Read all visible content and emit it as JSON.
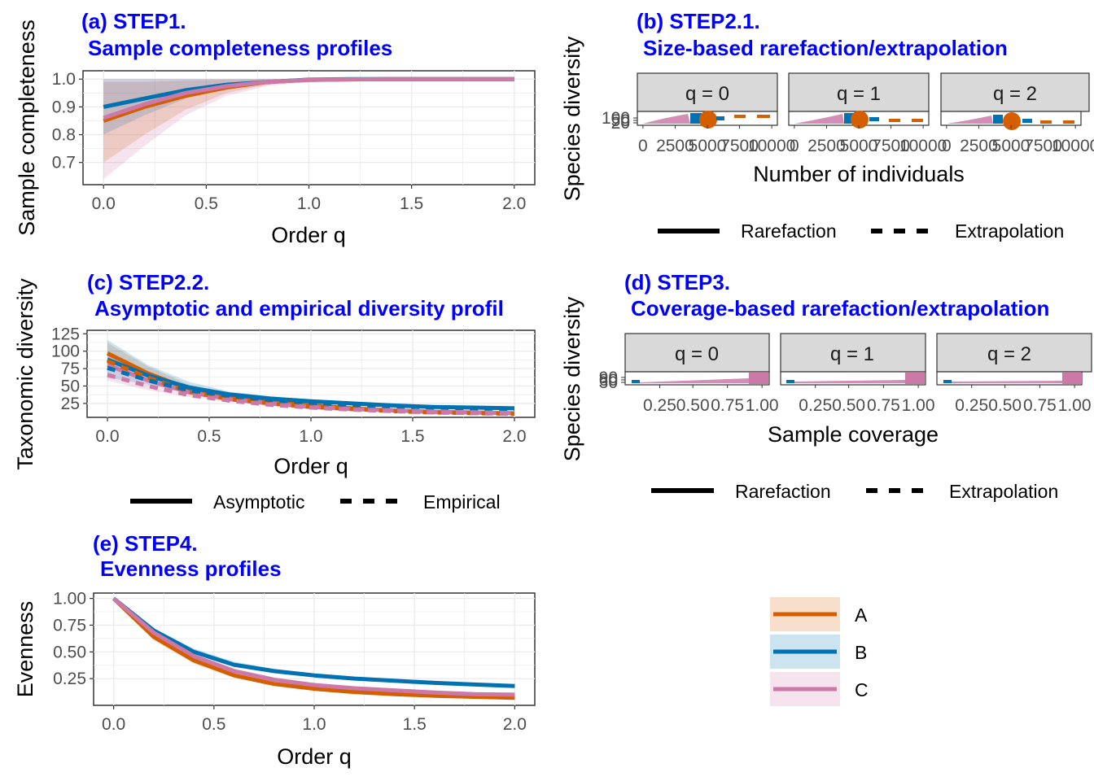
{
  "colors": {
    "accent_title": "#0000ff",
    "A": "#D55E00",
    "B": "#0072B2",
    "C": "#CC79A7",
    "grid": "#ebebeb",
    "strip": "#d9d9d9",
    "axis_text": "#4d4d4d"
  },
  "chart_data": [
    {
      "id": "a",
      "type": "line",
      "title": "(a) STEP1.",
      "subtitle": "Sample completeness profiles",
      "xlabel": "Order q",
      "ylabel": "Sample completeness",
      "xlim": [
        -0.1,
        2.1
      ],
      "ylim": [
        0.62,
        1.03
      ],
      "xticks": [
        "0.0",
        "0.5",
        "1.0",
        "1.5",
        "2.0"
      ],
      "xtick_values": [
        0,
        0.5,
        1,
        1.5,
        2
      ],
      "yticks": [
        "0.7",
        "0.8",
        "0.9",
        "1.0"
      ],
      "ytick_values": [
        0.7,
        0.8,
        0.9,
        1.0
      ],
      "x": [
        0,
        0.2,
        0.4,
        0.6,
        0.8,
        1.0,
        1.2,
        1.4,
        1.6,
        1.8,
        2.0
      ],
      "series": [
        {
          "name": "A",
          "values": [
            0.85,
            0.9,
            0.94,
            0.97,
            0.99,
            0.997,
            0.999,
            1.0,
            1.0,
            1.0,
            1.0
          ],
          "lower": [
            0.7,
            0.8,
            0.89,
            0.95,
            0.98,
            0.993,
            0.998,
            1.0,
            1.0,
            1.0,
            1.0
          ],
          "upper": [
            0.99,
            0.99,
            0.995,
            0.998,
            1.0,
            1.0,
            1.0,
            1.0,
            1.0,
            1.0,
            1.0
          ]
        },
        {
          "name": "B",
          "values": [
            0.9,
            0.93,
            0.96,
            0.98,
            0.99,
            0.998,
            1.0,
            1.0,
            1.0,
            1.0,
            1.0
          ],
          "lower": [
            0.8,
            0.87,
            0.93,
            0.965,
            0.985,
            0.995,
            0.999,
            1.0,
            1.0,
            1.0,
            1.0
          ],
          "upper": [
            1.0,
            1.0,
            1.0,
            1.0,
            1.0,
            1.0,
            1.0,
            1.0,
            1.0,
            1.0,
            1.0
          ]
        },
        {
          "name": "C",
          "values": [
            0.86,
            0.91,
            0.95,
            0.975,
            0.99,
            0.997,
            0.999,
            1.0,
            1.0,
            1.0,
            1.0
          ],
          "lower": [
            0.64,
            0.76,
            0.87,
            0.94,
            0.975,
            0.99,
            0.997,
            1.0,
            1.0,
            1.0,
            1.0
          ],
          "upper": [
            1.0,
            1.0,
            1.0,
            1.0,
            1.0,
            1.0,
            1.0,
            1.0,
            1.0,
            1.0,
            1.0
          ]
        }
      ]
    },
    {
      "id": "b",
      "type": "line",
      "title": "(b) STEP2.1.",
      "subtitle": "Size-based rarefaction/extrapolation",
      "xlabel": "Number of individuals",
      "ylabel": "Species diversity",
      "facets": [
        "q = 0",
        "q = 1",
        "q = 2"
      ],
      "xticks": [
        "0",
        "2500",
        "5000",
        "7500",
        "10000"
      ],
      "yticks": [
        "20",
        "50",
        "100"
      ],
      "legend": [
        "Rarefaction",
        "Extrapolation"
      ]
    },
    {
      "id": "c",
      "type": "line",
      "title": "(c) STEP2.2.",
      "subtitle": "Asymptotic and empirical diversity profil",
      "xlabel": "Order q",
      "ylabel": "Taxonomic diversity",
      "xlim": [
        -0.1,
        2.1
      ],
      "ylim": [
        5,
        130
      ],
      "xticks": [
        "0.0",
        "0.5",
        "1.0",
        "1.5",
        "2.0"
      ],
      "xtick_values": [
        0,
        0.5,
        1,
        1.5,
        2
      ],
      "yticks": [
        "25",
        "50",
        "75",
        "100",
        "125"
      ],
      "ytick_values": [
        25,
        50,
        75,
        100,
        125
      ],
      "x": [
        0,
        0.2,
        0.4,
        0.6,
        0.8,
        1.0,
        1.2,
        1.4,
        1.6,
        1.8,
        2.0
      ],
      "series": [
        {
          "name": "A",
          "values": [
            97,
            68,
            46,
            34,
            27,
            22,
            18,
            15,
            13,
            12,
            11
          ],
          "lower": [
            80,
            58,
            40,
            30,
            24,
            19,
            16,
            13,
            11,
            10,
            9
          ],
          "upper": [
            112,
            78,
            52,
            38,
            30,
            25,
            21,
            18,
            16,
            14,
            13
          ]
        },
        {
          "name": "B",
          "values": [
            88,
            65,
            48,
            38,
            32,
            28,
            25,
            22,
            20,
            19,
            18
          ],
          "lower": [
            62,
            52,
            41,
            34,
            29,
            25,
            22,
            20,
            18,
            17,
            16
          ],
          "upper": [
            116,
            80,
            56,
            42,
            35,
            30,
            27,
            24,
            22,
            21,
            20
          ]
        },
        {
          "name": "C",
          "values": [
            80,
            58,
            41,
            31,
            25,
            20,
            17,
            15,
            13,
            12,
            11
          ],
          "lower": [
            58,
            44,
            34,
            27,
            22,
            18,
            15,
            13,
            11,
            10,
            10
          ],
          "upper": [
            98,
            70,
            47,
            35,
            28,
            22,
            19,
            16,
            14,
            13,
            12
          ]
        }
      ],
      "empirical": [
        {
          "name": "A",
          "values": [
            86,
            62,
            42,
            31,
            25,
            20,
            17,
            14,
            12,
            11,
            10
          ]
        },
        {
          "name": "B",
          "values": [
            76,
            58,
            44,
            36,
            30,
            26,
            23,
            21,
            19,
            18,
            17
          ]
        },
        {
          "name": "C",
          "values": [
            66,
            50,
            37,
            29,
            23,
            19,
            16,
            14,
            12,
            11,
            10
          ]
        }
      ],
      "legend": [
        "Asymptotic",
        "Empirical"
      ]
    },
    {
      "id": "d",
      "type": "line",
      "title": "(d) STEP3.",
      "subtitle": "Coverage-based rarefaction/extrapolation",
      "xlabel": "Sample coverage",
      "ylabel": "Species diversity",
      "facets": [
        "q = 0",
        "q = 1",
        "q = 2"
      ],
      "xticks": [
        "0.25",
        "0.50",
        "0.75",
        "1.00"
      ],
      "yticks": [
        "30",
        "60",
        "90"
      ],
      "legend": [
        "Rarefaction",
        "Extrapolation"
      ]
    },
    {
      "id": "e",
      "type": "line",
      "title": "(e) STEP4.",
      "subtitle": "Evenness profiles",
      "xlabel": "Order q",
      "ylabel": "Evenness",
      "xlim": [
        -0.1,
        2.1
      ],
      "ylim": [
        0.0,
        1.05
      ],
      "xticks": [
        "0.0",
        "0.5",
        "1.0",
        "1.5",
        "2.0"
      ],
      "xtick_values": [
        0,
        0.5,
        1,
        1.5,
        2
      ],
      "yticks": [
        "0.25",
        "0.50",
        "0.75",
        "1.00"
      ],
      "ytick_values": [
        0.25,
        0.5,
        0.75,
        1.0
      ],
      "x": [
        0,
        0.2,
        0.4,
        0.6,
        0.8,
        1.0,
        1.2,
        1.4,
        1.6,
        1.8,
        2.0
      ],
      "series": [
        {
          "name": "A",
          "values": [
            1.0,
            0.64,
            0.42,
            0.28,
            0.2,
            0.155,
            0.125,
            0.105,
            0.09,
            0.08,
            0.07
          ],
          "lower": [
            1.0,
            0.61,
            0.39,
            0.26,
            0.185,
            0.14,
            0.11,
            0.095,
            0.08,
            0.07,
            0.06
          ],
          "upper": [
            1.0,
            0.67,
            0.45,
            0.3,
            0.215,
            0.17,
            0.14,
            0.115,
            0.1,
            0.09,
            0.08
          ]
        },
        {
          "name": "B",
          "values": [
            1.0,
            0.7,
            0.5,
            0.38,
            0.32,
            0.28,
            0.25,
            0.23,
            0.21,
            0.195,
            0.18
          ],
          "lower": [
            1.0,
            0.68,
            0.48,
            0.36,
            0.3,
            0.26,
            0.235,
            0.215,
            0.195,
            0.18,
            0.17
          ],
          "upper": [
            1.0,
            0.72,
            0.53,
            0.41,
            0.34,
            0.3,
            0.27,
            0.245,
            0.225,
            0.21,
            0.195
          ]
        },
        {
          "name": "C",
          "values": [
            1.0,
            0.68,
            0.46,
            0.32,
            0.24,
            0.19,
            0.16,
            0.14,
            0.12,
            0.105,
            0.1
          ],
          "lower": [
            1.0,
            0.65,
            0.43,
            0.3,
            0.22,
            0.17,
            0.145,
            0.125,
            0.105,
            0.095,
            0.09
          ],
          "upper": [
            1.0,
            0.71,
            0.49,
            0.35,
            0.26,
            0.21,
            0.175,
            0.155,
            0.135,
            0.12,
            0.11
          ]
        }
      ]
    }
  ],
  "group_legend": [
    "A",
    "B",
    "C"
  ]
}
